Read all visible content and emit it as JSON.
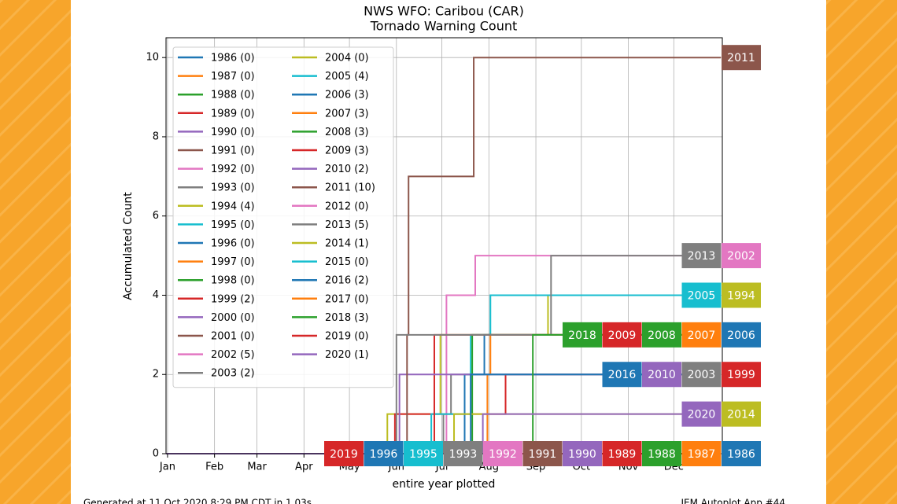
{
  "chart_data": {
    "type": "line",
    "title": "NWS WFO: Caribou (CAR)",
    "subtitle": "Tornado Warning Count",
    "ylabel": "Accumulated Count",
    "xlabel": "entire year plotted",
    "footer_left": "Generated at 11 Oct 2020 8:29 PM CDT in 1.03s",
    "footer_right": "IEM Autoplot App #44",
    "xlim": [
      0,
      367
    ],
    "ylim": [
      0,
      10.5
    ],
    "xticks": [
      {
        "value": 1,
        "label": "Jan"
      },
      {
        "value": 32,
        "label": "Feb"
      },
      {
        "value": 60,
        "label": "Mar"
      },
      {
        "value": 91,
        "label": "Apr"
      },
      {
        "value": 121,
        "label": "May"
      },
      {
        "value": 152,
        "label": "Jun"
      },
      {
        "value": 182,
        "label": "Jul"
      },
      {
        "value": 213,
        "label": "Aug"
      },
      {
        "value": 244,
        "label": "Sep"
      },
      {
        "value": 274,
        "label": "Oct"
      },
      {
        "value": 305,
        "label": "Nov"
      },
      {
        "value": 335,
        "label": "Dec"
      }
    ],
    "yticks": [
      0,
      2,
      4,
      6,
      8,
      10
    ],
    "grid": true,
    "legend": "upper left",
    "series": [
      {
        "name": "1986 (0)",
        "label": "1986",
        "color": "#1f77b4",
        "x": [
          0,
          366
        ],
        "values": [
          0,
          0
        ]
      },
      {
        "name": "1987 (0)",
        "label": "1987",
        "color": "#ff7f0e",
        "x": [
          0,
          366
        ],
        "values": [
          0,
          0
        ]
      },
      {
        "name": "1988 (0)",
        "label": "1988",
        "color": "#2ca02c",
        "x": [
          0,
          366
        ],
        "values": [
          0,
          0
        ]
      },
      {
        "name": "1989 (0)",
        "label": "1989",
        "color": "#d62728",
        "x": [
          0,
          366
        ],
        "values": [
          0,
          0
        ]
      },
      {
        "name": "1990 (0)",
        "label": "1990",
        "color": "#9467bd",
        "x": [
          0,
          366
        ],
        "values": [
          0,
          0
        ]
      },
      {
        "name": "1991 (0)",
        "label": "1991",
        "color": "#8c564b",
        "x": [
          0,
          366
        ],
        "values": [
          0,
          0
        ]
      },
      {
        "name": "1992 (0)",
        "label": "1992",
        "color": "#e377c2",
        "x": [
          0,
          366
        ],
        "values": [
          0,
          0
        ]
      },
      {
        "name": "1993 (0)",
        "label": "1993",
        "color": "#7f7f7f",
        "x": [
          0,
          366
        ],
        "values": [
          0,
          0
        ]
      },
      {
        "name": "1994 (4)",
        "label": "1994",
        "color": "#bcbd22",
        "x": [
          0,
          146,
          181,
          252,
          366
        ],
        "values": [
          0,
          1,
          3,
          4,
          4
        ]
      },
      {
        "name": "1995 (0)",
        "label": "1995",
        "color": "#17becf",
        "x": [
          0,
          366
        ],
        "values": [
          0,
          0
        ]
      },
      {
        "name": "1996 (0)",
        "label": "1996",
        "color": "#1f77b4",
        "x": [
          0,
          366
        ],
        "values": [
          0,
          0
        ]
      },
      {
        "name": "1997 (0)",
        "color": "#ff7f0e",
        "x": [
          0,
          366
        ],
        "values": [
          0,
          0
        ]
      },
      {
        "name": "1998 (0)",
        "color": "#2ca02c",
        "x": [
          0,
          366
        ],
        "values": [
          0,
          0
        ]
      },
      {
        "name": "1999 (2)",
        "label": "1999",
        "color": "#d62728",
        "x": [
          0,
          151,
          224,
          366
        ],
        "values": [
          0,
          1,
          2,
          2
        ]
      },
      {
        "name": "2000 (0)",
        "color": "#9467bd",
        "x": [
          0,
          366
        ],
        "values": [
          0,
          0
        ]
      },
      {
        "name": "2001 (0)",
        "color": "#8c564b",
        "x": [
          0,
          366
        ],
        "values": [
          0,
          0
        ]
      },
      {
        "name": "2002 (5)",
        "label": "2002",
        "color": "#e377c2",
        "x": [
          0,
          185,
          204,
          366
        ],
        "values": [
          0,
          4,
          5,
          5
        ]
      },
      {
        "name": "2003 (2)",
        "label": "2003",
        "color": "#7f7f7f",
        "x": [
          0,
          183,
          188,
          366
        ],
        "values": [
          0,
          1,
          2,
          2
        ]
      },
      {
        "name": "2004 (0)",
        "color": "#bcbd22",
        "x": [
          0,
          366
        ],
        "values": [
          0,
          0
        ]
      },
      {
        "name": "2005 (4)",
        "label": "2005",
        "color": "#17becf",
        "x": [
          0,
          175,
          201,
          214,
          366
        ],
        "values": [
          0,
          1,
          3,
          4,
          4
        ]
      },
      {
        "name": "2006 (3)",
        "label": "2006",
        "color": "#1f77b4",
        "x": [
          0,
          197,
          210,
          366
        ],
        "values": [
          0,
          2,
          3,
          3
        ]
      },
      {
        "name": "2007 (3)",
        "label": "2007",
        "color": "#ff7f0e",
        "x": [
          0,
          212,
          214,
          366
        ],
        "values": [
          0,
          2,
          3,
          3
        ]
      },
      {
        "name": "2008 (3)",
        "label": "2008",
        "color": "#2ca02c",
        "x": [
          0,
          202,
          366
        ],
        "values": [
          0,
          3,
          3
        ]
      },
      {
        "name": "2009 (3)",
        "label": "2009",
        "color": "#d62728",
        "x": [
          0,
          177,
          366
        ],
        "values": [
          0,
          3,
          3
        ]
      },
      {
        "name": "2010 (2)",
        "label": "2010",
        "color": "#9467bd",
        "x": [
          0,
          154,
          366
        ],
        "values": [
          0,
          2,
          2
        ]
      },
      {
        "name": "2011 (10)",
        "label": "2011",
        "color": "#8c564b",
        "x": [
          0,
          159,
          160,
          203,
          366
        ],
        "values": [
          0,
          3,
          7,
          10,
          10
        ]
      },
      {
        "name": "2012 (0)",
        "color": "#e377c2",
        "x": [
          0,
          366
        ],
        "values": [
          0,
          0
        ]
      },
      {
        "name": "2013 (5)",
        "label": "2013",
        "color": "#7f7f7f",
        "x": [
          0,
          152,
          254,
          366
        ],
        "values": [
          0,
          3,
          5,
          5
        ]
      },
      {
        "name": "2014 (1)",
        "label": "2014",
        "color": "#bcbd22",
        "x": [
          0,
          190,
          366
        ],
        "values": [
          0,
          1,
          1
        ]
      },
      {
        "name": "2015 (0)",
        "color": "#17becf",
        "x": [
          0,
          366
        ],
        "values": [
          0,
          0
        ]
      },
      {
        "name": "2016 (2)",
        "label": "2016",
        "color": "#1f77b4",
        "x": [
          0,
          201,
          366
        ],
        "values": [
          0,
          2,
          2
        ]
      },
      {
        "name": "2017 (0)",
        "color": "#ff7f0e",
        "x": [
          0,
          366
        ],
        "values": [
          0,
          0
        ]
      },
      {
        "name": "2018 (3)",
        "label": "2018",
        "color": "#2ca02c",
        "x": [
          0,
          242,
          366
        ],
        "values": [
          0,
          3,
          3
        ]
      },
      {
        "name": "2019 (0)",
        "label": "2019",
        "color": "#d62728",
        "x": [
          0,
          366
        ],
        "values": [
          0,
          0
        ]
      },
      {
        "name": "2020 (1)",
        "label": "2020",
        "color": "#9467bd",
        "x": [
          0,
          209,
          366
        ],
        "values": [
          0,
          1,
          1
        ]
      }
    ]
  }
}
